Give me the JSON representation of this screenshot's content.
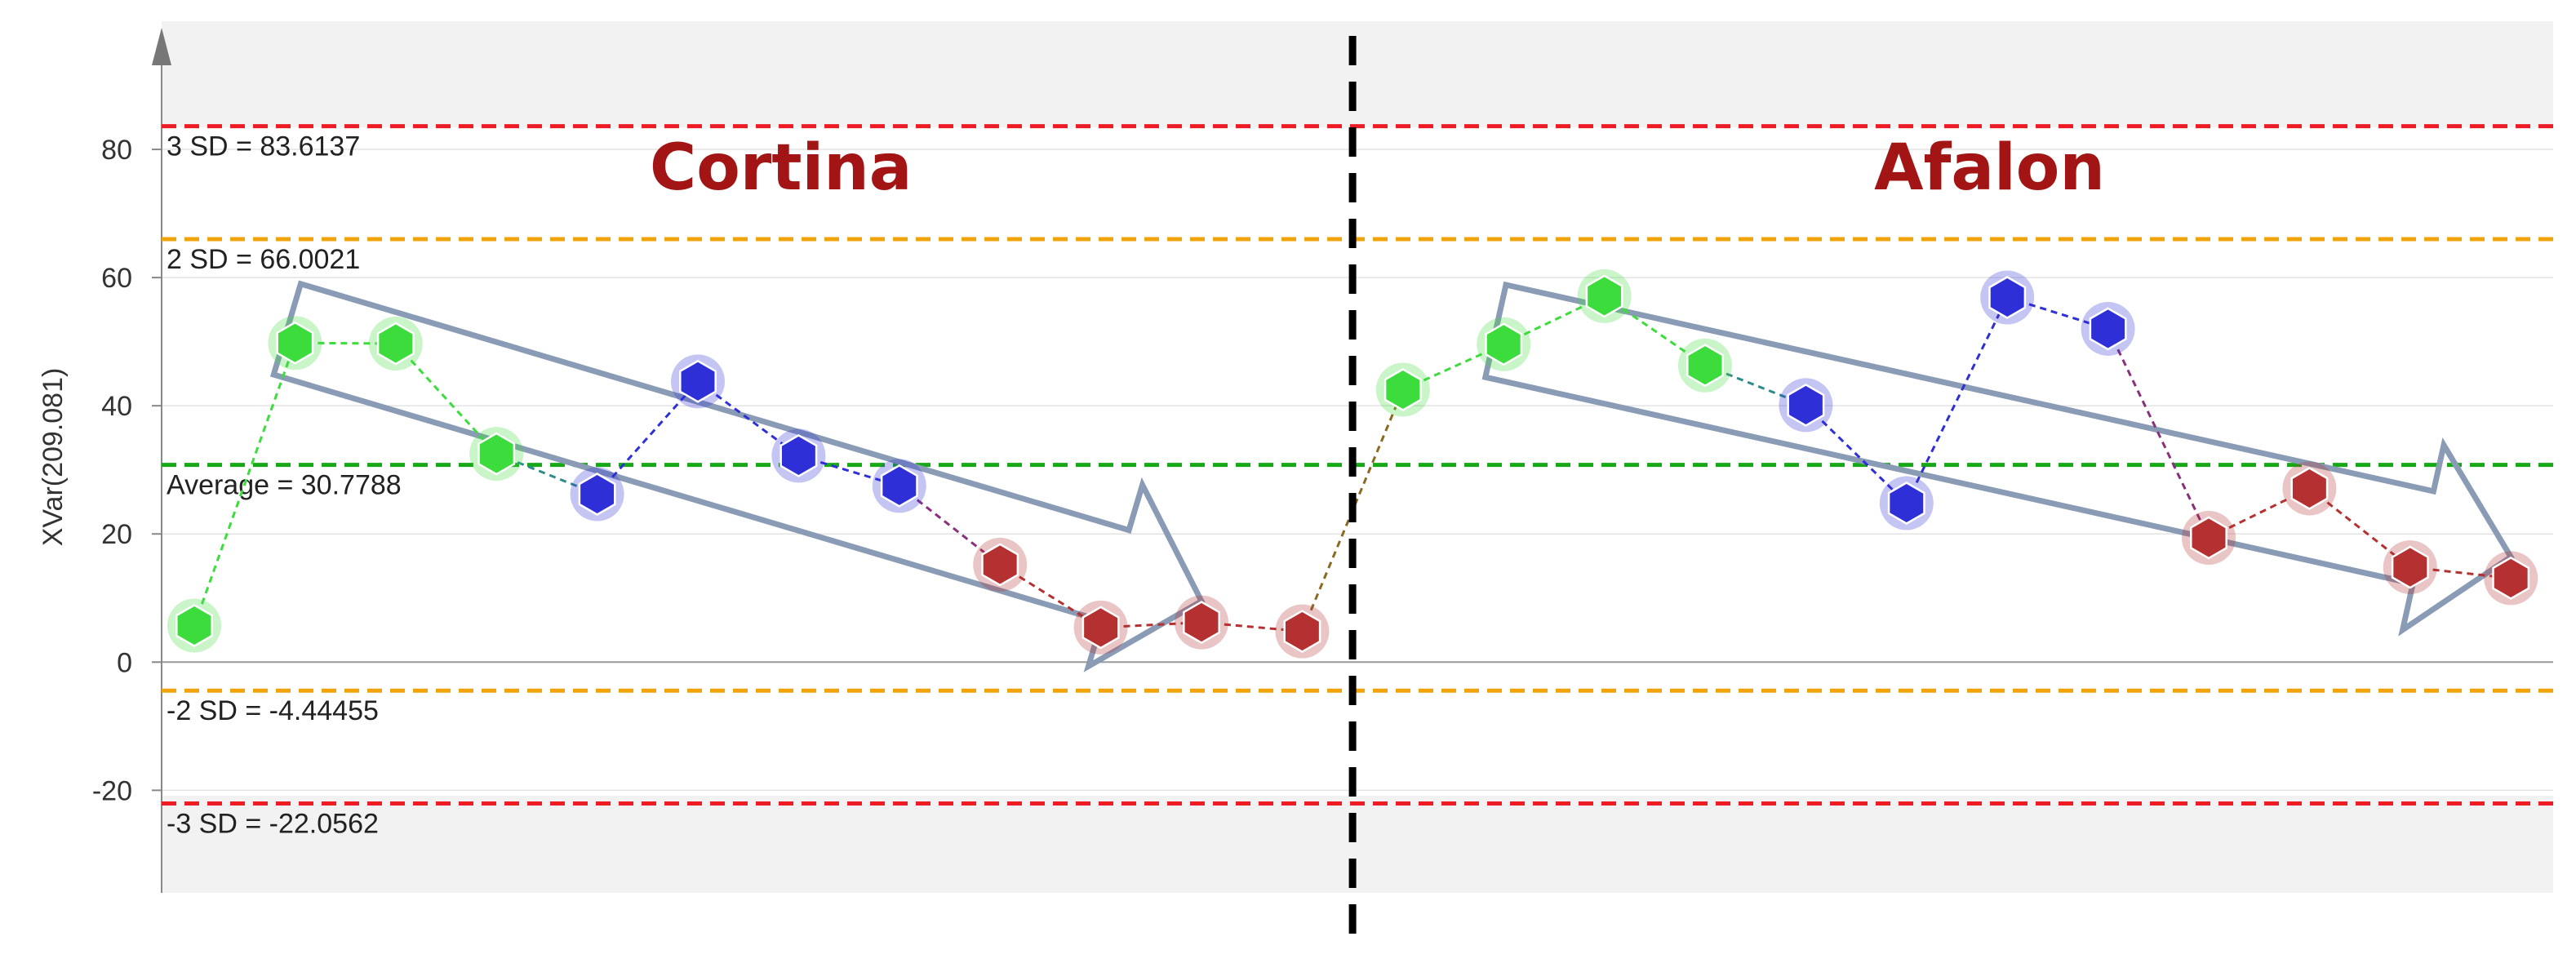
{
  "chart_data": {
    "type": "line",
    "ylabel": "XVar(209.081)",
    "ylim": [
      -36,
      100
    ],
    "yticks": [
      -20,
      0,
      20,
      40,
      60,
      80
    ],
    "grid": true,
    "reference_lines": [
      {
        "name": "ucl3",
        "value": 83.6137,
        "label": "3 SD = 83.6137",
        "color": "#ee1c25"
      },
      {
        "name": "ucl2",
        "value": 66.0021,
        "label": "2 SD = 66.0021",
        "color": "#f0a30a"
      },
      {
        "name": "mean",
        "value": 30.7788,
        "label": "Average = 30.7788",
        "color": "#17a817"
      },
      {
        "name": "lcl2",
        "value": -4.44455,
        "label": "-2 SD = -4.44455",
        "color": "#f0a30a"
      },
      {
        "name": "lcl3",
        "value": -22.0562,
        "label": "-3 SD = -22.0562",
        "color": "#ee1c25"
      }
    ],
    "segments": [
      {
        "title": "Cortina",
        "start": 1,
        "end": 12
      },
      {
        "title": "Afalon",
        "start": 13,
        "end": 24
      }
    ],
    "divider_after": 12,
    "trend_arrows": [
      {
        "segment": "Cortina",
        "from": 2,
        "to": 11
      },
      {
        "segment": "Afalon",
        "from": 14,
        "to": 24
      }
    ],
    "colors": {
      "green": "#3ddc3d",
      "blue": "#2f2fd8",
      "red": "#b53030",
      "arrow": "#8a9bb5"
    },
    "points": [
      {
        "x": 1,
        "y": 5.7,
        "color": "green"
      },
      {
        "x": 2,
        "y": 49.8,
        "color": "green"
      },
      {
        "x": 3,
        "y": 49.7,
        "color": "green"
      },
      {
        "x": 4,
        "y": 32.5,
        "color": "green"
      },
      {
        "x": 5,
        "y": 26.2,
        "color": "blue"
      },
      {
        "x": 6,
        "y": 43.8,
        "color": "blue"
      },
      {
        "x": 7,
        "y": 32.2,
        "color": "blue"
      },
      {
        "x": 8,
        "y": 27.5,
        "color": "blue"
      },
      {
        "x": 9,
        "y": 15.2,
        "color": "red"
      },
      {
        "x": 10,
        "y": 5.4,
        "color": "red"
      },
      {
        "x": 11,
        "y": 6.2,
        "color": "red"
      },
      {
        "x": 12,
        "y": 4.8,
        "color": "red"
      },
      {
        "x": 13,
        "y": 42.5,
        "color": "green"
      },
      {
        "x": 14,
        "y": 49.6,
        "color": "green"
      },
      {
        "x": 15,
        "y": 57.1,
        "color": "green"
      },
      {
        "x": 16,
        "y": 46.3,
        "color": "green"
      },
      {
        "x": 17,
        "y": 40.1,
        "color": "blue"
      },
      {
        "x": 18,
        "y": 24.8,
        "color": "blue"
      },
      {
        "x": 19,
        "y": 56.9,
        "color": "blue"
      },
      {
        "x": 20,
        "y": 52.0,
        "color": "blue"
      },
      {
        "x": 21,
        "y": 19.4,
        "color": "red"
      },
      {
        "x": 22,
        "y": 27.1,
        "color": "red"
      },
      {
        "x": 23,
        "y": 14.8,
        "color": "red"
      },
      {
        "x": 24,
        "y": 13.1,
        "color": "red"
      }
    ]
  }
}
